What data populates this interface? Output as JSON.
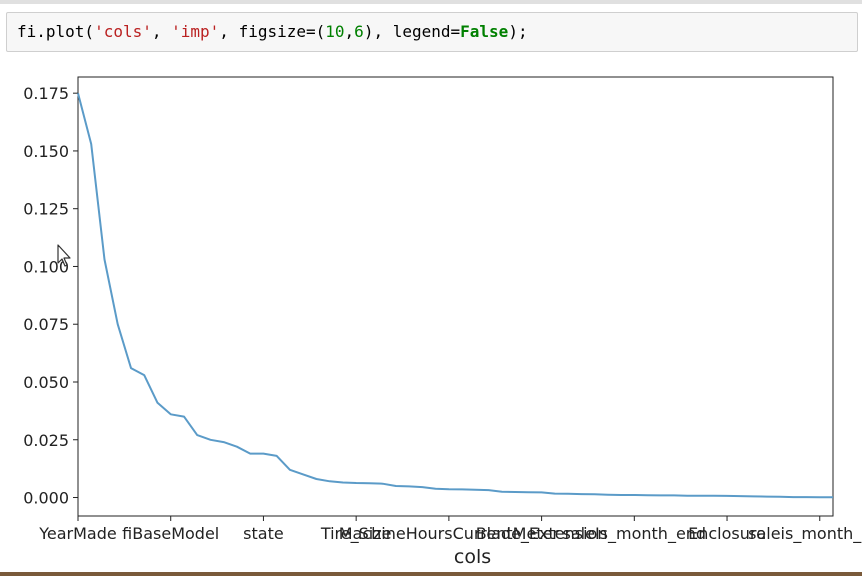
{
  "notebook": {
    "code_cell": {
      "tokens": [
        {
          "text": "fi.plot(",
          "kind": "plain"
        },
        {
          "text": "'cols'",
          "kind": "str"
        },
        {
          "text": ", ",
          "kind": "plain"
        },
        {
          "text": "'imp'",
          "kind": "str"
        },
        {
          "text": ", figsize=(",
          "kind": "plain"
        },
        {
          "text": "10",
          "kind": "num"
        },
        {
          "text": ",",
          "kind": "plain"
        },
        {
          "text": "6",
          "kind": "num"
        },
        {
          "text": "), legend=",
          "kind": "plain"
        },
        {
          "text": "False",
          "kind": "kw"
        },
        {
          "text": ");",
          "kind": "plain"
        }
      ]
    }
  },
  "colors": {
    "line": "#5b9bc8",
    "string": "#ba2121",
    "number": "#008000",
    "keyword": "#008000"
  },
  "chart_data": {
    "type": "line",
    "title": "",
    "xlabel": "cols",
    "ylabel": "",
    "x_tick_labels": [
      "YearMade",
      "fiBaseModel",
      "state",
      "Tire_Size",
      "MachineHoursCurrentMeter",
      "Blade_Extension",
      "saleIs_month_end",
      "Enclosure",
      "saleis_month_end"
    ],
    "y_ticks": [
      "0.000",
      "0.025",
      "0.050",
      "0.075",
      "0.100",
      "0.125",
      "0.150",
      "0.175"
    ],
    "ylim": [
      -0.008,
      0.182
    ],
    "xlim": [
      0,
      57
    ],
    "grid": false,
    "legend": false,
    "series": [
      {
        "values": [
          0.175,
          0.153,
          0.103,
          0.075,
          0.056,
          0.053,
          0.041,
          0.036,
          0.035,
          0.027,
          0.025,
          0.024,
          0.022,
          0.019,
          0.019,
          0.018,
          0.012,
          0.01,
          0.008,
          0.007,
          0.0065,
          0.0063,
          0.0062,
          0.006,
          0.005,
          0.0048,
          0.0045,
          0.0038,
          0.0036,
          0.0035,
          0.0034,
          0.0032,
          0.0025,
          0.0024,
          0.0023,
          0.0022,
          0.0017,
          0.0016,
          0.0015,
          0.0014,
          0.0012,
          0.0011,
          0.0011,
          0.001,
          0.0009,
          0.0009,
          0.0008,
          0.0008,
          0.0008,
          0.0007,
          0.0006,
          0.0005,
          0.0004,
          0.0003,
          0.0002,
          0.0002,
          0.0001,
          0.0001
        ]
      }
    ]
  }
}
